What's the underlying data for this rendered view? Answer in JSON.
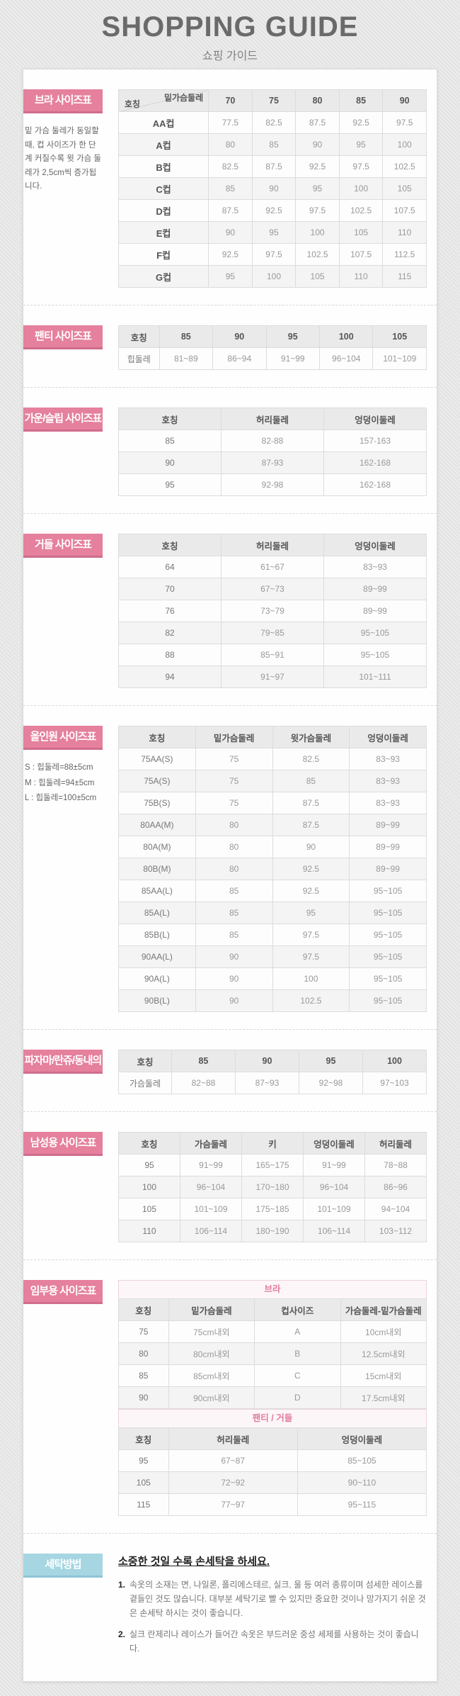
{
  "header": {
    "title": "SHOPPING GUIDE",
    "subtitle": "쇼핑 가이드"
  },
  "colors": {
    "accent_pink": "#e5809d",
    "accent_pink_dark": "#cf6d8d",
    "accent_blue": "#a5d6e2",
    "table_header_bg": "#eaeaea",
    "row_alt_bg": "#f4f4f4"
  },
  "sections": {
    "bra": {
      "label": "브라 사이즈표",
      "note": "밑 가슴 둘레가 동일할 때, 컵 사이즈가 한 단계 커질수록 윗 가슴 둘레가 2,5cm씩 증가됩니다.",
      "table": {
        "corner": {
          "top": "밑가슴둘레",
          "bottom": "호칭"
        },
        "headers": [
          "70",
          "75",
          "80",
          "85",
          "90"
        ],
        "rows": [
          [
            "AA컵",
            "77.5",
            "82.5",
            "87.5",
            "92.5",
            "97.5"
          ],
          [
            "A컵",
            "80",
            "85",
            "90",
            "95",
            "100"
          ],
          [
            "B컵",
            "82.5",
            "87.5",
            "92.5",
            "97.5",
            "102.5"
          ],
          [
            "C컵",
            "85",
            "90",
            "95",
            "100",
            "105"
          ],
          [
            "D컵",
            "87.5",
            "92.5",
            "97.5",
            "102.5",
            "107.5"
          ],
          [
            "E컵",
            "90",
            "95",
            "100",
            "105",
            "110"
          ],
          [
            "F컵",
            "92.5",
            "97.5",
            "102.5",
            "107.5",
            "112.5"
          ],
          [
            "G컵",
            "95",
            "100",
            "105",
            "110",
            "115"
          ]
        ]
      }
    },
    "panty": {
      "label": "팬티 사이즈표",
      "table": {
        "headers": [
          "호칭",
          "85",
          "90",
          "95",
          "100",
          "105"
        ],
        "rows": [
          [
            "힙둘레",
            "81~89",
            "86~94",
            "91~99",
            "96~104",
            "101~109"
          ]
        ]
      }
    },
    "gown": {
      "label": "가운/슬립 사이즈표",
      "table": {
        "headers": [
          "호칭",
          "허리둘레",
          "엉덩이둘레"
        ],
        "rows": [
          [
            "85",
            "82-88",
            "157-163"
          ],
          [
            "90",
            "87-93",
            "162-168"
          ],
          [
            "95",
            "92-98",
            "162-168"
          ]
        ]
      }
    },
    "girdle": {
      "label": "거들 사이즈표",
      "table": {
        "headers": [
          "호칭",
          "허리둘레",
          "엉덩이둘레"
        ],
        "rows": [
          [
            "64",
            "61~67",
            "83~93"
          ],
          [
            "70",
            "67~73",
            "89~99"
          ],
          [
            "76",
            "73~79",
            "89~99"
          ],
          [
            "82",
            "79~85",
            "95~105"
          ],
          [
            "88",
            "85~91",
            "95~105"
          ],
          [
            "94",
            "91~97",
            "101~111"
          ]
        ]
      }
    },
    "allinone": {
      "label": "올인원 사이즈표",
      "notes": [
        "S : 힙둘레=88±5cm",
        "M : 힙둘레=94±5cm",
        "L : 힙둘레=100±5cm"
      ],
      "table": {
        "headers": [
          "호칭",
          "밑가슴둘레",
          "윗가슴둘레",
          "엉덩이둘레"
        ],
        "rows": [
          [
            "75AA(S)",
            "75",
            "82.5",
            "83~93"
          ],
          [
            "75A(S)",
            "75",
            "85",
            "83~93"
          ],
          [
            "75B(S)",
            "75",
            "87.5",
            "83~93"
          ],
          [
            "80AA(M)",
            "80",
            "87.5",
            "89~99"
          ],
          [
            "80A(M)",
            "80",
            "90",
            "89~99"
          ],
          [
            "80B(M)",
            "80",
            "92.5",
            "89~99"
          ],
          [
            "85AA(L)",
            "85",
            "92.5",
            "95~105"
          ],
          [
            "85A(L)",
            "85",
            "95",
            "95~105"
          ],
          [
            "85B(L)",
            "85",
            "97.5",
            "95~105"
          ],
          [
            "90AA(L)",
            "90",
            "97.5",
            "95~105"
          ],
          [
            "90A(L)",
            "90",
            "100",
            "95~105"
          ],
          [
            "90B(L)",
            "90",
            "102.5",
            "95~105"
          ]
        ]
      }
    },
    "pajama": {
      "label": "파자마/란쥬/동내의",
      "table": {
        "headers": [
          "호칭",
          "85",
          "90",
          "95",
          "100"
        ],
        "rows": [
          [
            "가슴둘레",
            "82~88",
            "87~93",
            "92~98",
            "97~103"
          ]
        ]
      }
    },
    "mens": {
      "label": "남성용 사이즈표",
      "table": {
        "headers": [
          "호칭",
          "가슴둘레",
          "키",
          "엉덩이둘레",
          "허리둘레"
        ],
        "rows": [
          [
            "95",
            "91~99",
            "165~175",
            "91~99",
            "78~88"
          ],
          [
            "100",
            "96~104",
            "170~180",
            "96~104",
            "86~96"
          ],
          [
            "105",
            "101~109",
            "175~185",
            "101~109",
            "94~104"
          ],
          [
            "110",
            "106~114",
            "180~190",
            "106~114",
            "103~112"
          ]
        ]
      }
    },
    "maternity": {
      "label": "임부용 사이즈표",
      "tables": [
        {
          "caption": "브라",
          "headers": [
            "호칭",
            "밑가슴둘레",
            "컵사이즈",
            "가슴둘레-밑가슴둘레"
          ],
          "rows": [
            [
              "75",
              "75cm내외",
              "A",
              "10cm내외"
            ],
            [
              "80",
              "80cm내외",
              "B",
              "12.5cm내외"
            ],
            [
              "85",
              "85cm내외",
              "C",
              "15cm내외"
            ],
            [
              "90",
              "90cm내외",
              "D",
              "17.5cm내외"
            ]
          ]
        },
        {
          "caption": "팬티 / 거들",
          "headers": [
            "호칭",
            "허리둘레",
            "엉덩이둘레"
          ],
          "rows": [
            [
              "95",
              "67~87",
              "85~105"
            ],
            [
              "105",
              "72~92",
              "90~110"
            ],
            [
              "115",
              "77~97",
              "95~115"
            ]
          ]
        }
      ]
    },
    "washing": {
      "label": "세탁방법",
      "title": "소중한 것일 수록 손세탁을 하세요.",
      "items": [
        {
          "no": "1.",
          "text": "속옷의 소재는 면, 나일론, 폴리에스테르, 실크, 울 등 여러 종류이며 섬세한 레이스를 곁들인 것도 많습니다. 대부분 세탁기로 빨 수 있지만 중요한 것이나 망가지기 쉬운 것은 손세탁 하시는 것이 좋습니다."
        },
        {
          "no": "2.",
          "text": "실크 란제리나 레이스가 들어간 속옷은 부드러운 중성 세제를 사용하는 것이 좋습니다."
        }
      ]
    }
  }
}
